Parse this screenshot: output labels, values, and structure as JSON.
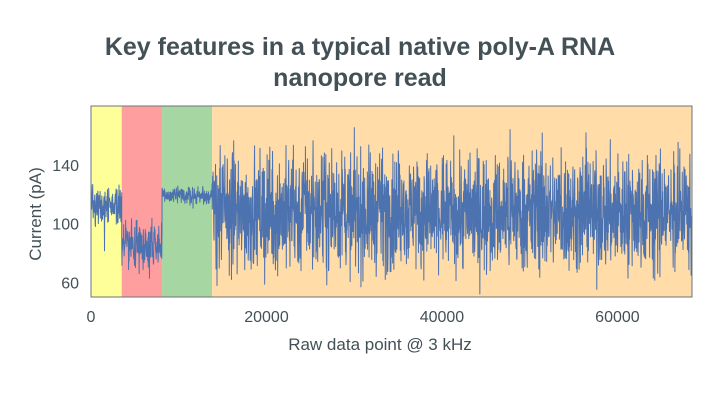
{
  "chart_data": {
    "type": "line",
    "title_lines": [
      "Key features in a typical native poly-A RNA",
      "nanopore read"
    ],
    "xlabel": "Raw data point @ 3 kHz",
    "ylabel": "Current (pA)",
    "xlim": [
      0,
      68500
    ],
    "ylim": [
      50,
      180
    ],
    "x_ticks": [
      0,
      20000,
      40000,
      60000
    ],
    "x_tick_labels": [
      "0",
      "20000",
      "40000",
      "60000"
    ],
    "y_ticks": [
      60,
      100,
      140
    ],
    "y_tick_labels": [
      "60",
      "100",
      "140"
    ],
    "regions": [
      {
        "x_start": 0,
        "x_end": 3500,
        "color": "#ffff99"
      },
      {
        "x_start": 3500,
        "x_end": 8100,
        "color": "#ff9e9e"
      },
      {
        "x_start": 8100,
        "x_end": 13800,
        "color": "#a6d6a1"
      },
      {
        "x_start": 13800,
        "x_end": 68500,
        "color": "#ffdca8"
      }
    ],
    "series": [
      {
        "color": "#4c72b0",
        "segments": [
          {
            "x_start": 0,
            "x_end": 3500,
            "mean": 113,
            "noise": 6,
            "spikes": 0.02,
            "spike_range": [
              62,
              130
            ]
          },
          {
            "x_start": 3500,
            "x_end": 8100,
            "mean": 86,
            "noise": 8,
            "spikes": 0.03,
            "spike_range": [
              60,
              110
            ]
          },
          {
            "x_start": 8100,
            "x_end": 13800,
            "mean": 119,
            "noise": 3,
            "spikes": 0.005,
            "spike_range": [
              110,
              126
            ]
          },
          {
            "x_start": 13800,
            "x_end": 68500,
            "mean": 108,
            "noise": 20,
            "spikes": 0.06,
            "spike_range": [
              60,
              158
            ]
          }
        ]
      }
    ],
    "grid": false,
    "legend": "none"
  }
}
